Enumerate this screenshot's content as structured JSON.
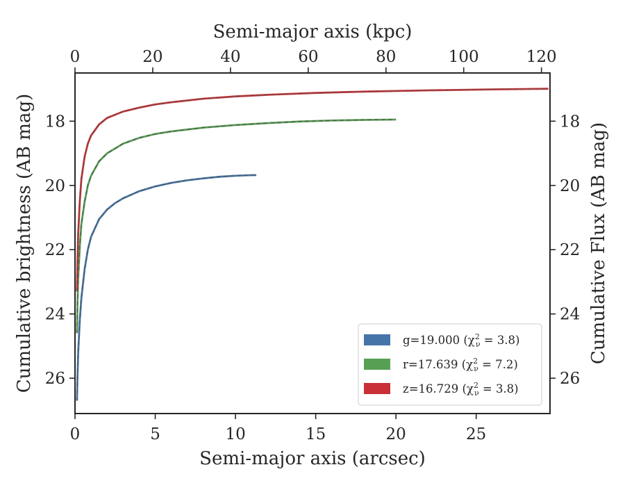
{
  "chart_data": {
    "type": "line",
    "xlabel_bottom": "Semi-major axis (arcsec)",
    "xlabel_top": "Semi-major axis (kpc)",
    "ylabel_left": "Cumulative brightness (AB mag)",
    "ylabel_right": "Cumulative Flux (AB mag)",
    "xlim": [
      0,
      29.6
    ],
    "xlim_top": [
      0,
      122.2
    ],
    "ylim": [
      27.1,
      16.5
    ],
    "y_inverted": true,
    "xticks_bottom": [
      "0",
      "5",
      "10",
      "15",
      "20",
      "25"
    ],
    "xticks_top": [
      "0",
      "20",
      "40",
      "60",
      "80",
      "100",
      "120"
    ],
    "yticks_left": [
      "18",
      "20",
      "22",
      "24",
      "26"
    ],
    "yticks_right": [
      "18",
      "20",
      "22",
      "24",
      "26"
    ],
    "legend_position": "lower-right",
    "series": [
      {
        "name": "g",
        "legend_label": "g=19.000 ",
        "legend_chi": "(χ",
        "legend_chi_sup": "2",
        "legend_chi_sub": "ν",
        "legend_chi_value": " = 3.8)",
        "color": "#4575a8",
        "x": [
          0.12,
          0.15,
          0.2,
          0.3,
          0.4,
          0.6,
          0.8,
          1.0,
          1.5,
          2.0,
          2.5,
          3.0,
          4.0,
          5.0,
          6.0,
          7.0,
          8.0,
          9.0,
          10.0,
          11.0,
          11.3
        ],
        "y": [
          26.7,
          26.0,
          25.2,
          24.2,
          23.5,
          22.6,
          22.0,
          21.6,
          21.05,
          20.75,
          20.55,
          20.4,
          20.18,
          20.03,
          19.92,
          19.84,
          19.78,
          19.73,
          19.7,
          19.68,
          19.68
        ]
      },
      {
        "name": "r",
        "legend_label": "r=17.639 ",
        "legend_chi": "(χ",
        "legend_chi_sup": "2",
        "legend_chi_sub": "ν",
        "legend_chi_value": " = 7.2)",
        "color": "#57a053",
        "x": [
          0.12,
          0.15,
          0.2,
          0.3,
          0.4,
          0.6,
          0.8,
          1.0,
          1.5,
          2.0,
          3.0,
          4.0,
          5.0,
          6.0,
          8.0,
          10.0,
          12.0,
          14.0,
          16.0,
          18.0,
          20.0
        ],
        "y": [
          24.6,
          23.7,
          22.9,
          21.9,
          21.2,
          20.5,
          20.0,
          19.7,
          19.25,
          19.0,
          18.7,
          18.52,
          18.4,
          18.32,
          18.2,
          18.12,
          18.06,
          18.01,
          17.98,
          17.96,
          17.95
        ]
      },
      {
        "name": "z",
        "legend_label": "z=16.729 ",
        "legend_chi": "(χ",
        "legend_chi_sup": "2",
        "legend_chi_sub": "ν",
        "legend_chi_value": " = 3.8)",
        "color": "#c93035",
        "x": [
          0.12,
          0.15,
          0.2,
          0.3,
          0.4,
          0.6,
          0.8,
          1.0,
          1.5,
          2.0,
          3.0,
          4.0,
          5.0,
          6.0,
          8.0,
          10.0,
          12.0,
          15.0,
          18.0,
          22.0,
          26.0,
          29.5
        ],
        "y": [
          23.3,
          22.4,
          21.5,
          20.5,
          19.8,
          19.1,
          18.7,
          18.45,
          18.1,
          17.9,
          17.7,
          17.58,
          17.48,
          17.41,
          17.3,
          17.23,
          17.18,
          17.12,
          17.08,
          17.04,
          17.01,
          16.99
        ]
      }
    ]
  }
}
